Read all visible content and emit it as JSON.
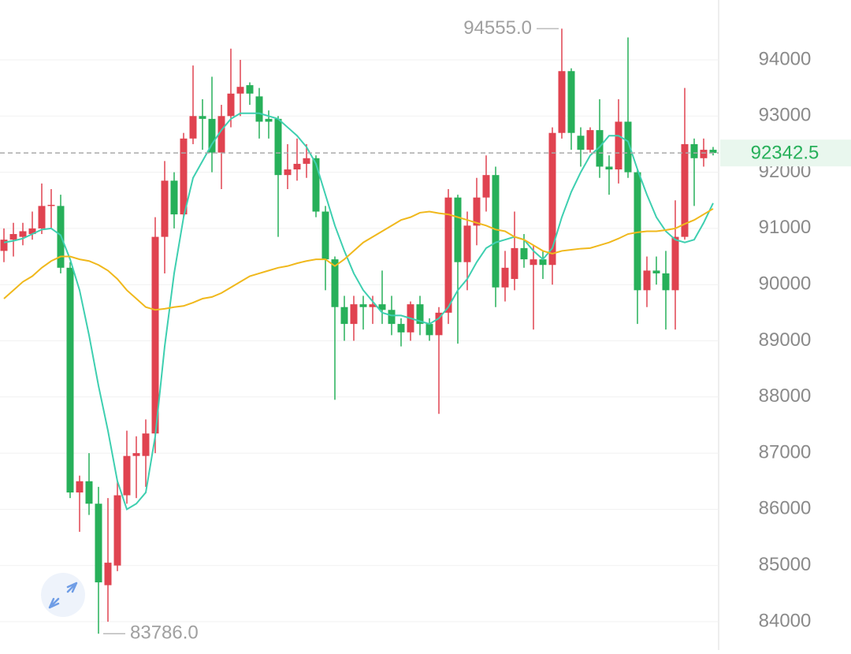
{
  "chart_data": {
    "type": "candlestick",
    "up_color": "#e04350",
    "down_color": "#27b05a",
    "ylim": [
      83495,
      95066
    ],
    "yticks": [
      84000,
      85000,
      86000,
      87000,
      88000,
      89000,
      90000,
      91000,
      92000,
      93000,
      94000
    ],
    "grid": true,
    "open": [
      90600,
      90800,
      90850,
      90900,
      91000,
      91400,
      91400,
      90300,
      86300,
      86500,
      86100,
      84650,
      85000,
      86250,
      86950,
      86950,
      87350,
      90850,
      91850,
      91250,
      92600,
      93000,
      92950,
      92350,
      93000,
      93400,
      93550,
      93350,
      92950,
      92950,
      91950,
      92050,
      92150,
      92250,
      91300,
      90450,
      89600,
      89300,
      89650,
      89600,
      89650,
      89550,
      89300,
      89150,
      89650,
      89300,
      89100,
      89500,
      91550,
      90400,
      91050,
      91550,
      91950,
      89950,
      90100,
      90650,
      90350,
      90450,
      90350,
      92700,
      93800,
      92650,
      92400,
      92750,
      92100,
      92050,
      92900,
      92000,
      89900,
      90250,
      90200,
      89900,
      90850,
      92500,
      92250,
      92400
    ],
    "high": [
      91000,
      91100,
      91100,
      91300,
      91800,
      91700,
      91600,
      90400,
      86600,
      87000,
      86400,
      86200,
      86500,
      87400,
      87300,
      87600,
      91200,
      92200,
      92000,
      92700,
      93900,
      93300,
      93700,
      93200,
      94200,
      94000,
      93600,
      93500,
      93100,
      93000,
      92500,
      92600,
      92500,
      92300,
      91400,
      90500,
      89800,
      89800,
      89800,
      89800,
      90250,
      89800,
      89400,
      89700,
      89800,
      89400,
      89600,
      91700,
      91600,
      91300,
      91900,
      92300,
      92100,
      90600,
      91300,
      90900,
      90700,
      90600,
      92800,
      94555,
      93850,
      92800,
      92800,
      93300,
      92300,
      93300,
      94400,
      92050,
      90500,
      90500,
      90600,
      91500,
      93500,
      92600,
      92600,
      92450
    ],
    "low": [
      90400,
      90500,
      90700,
      90800,
      90900,
      91000,
      90200,
      86200,
      85600,
      85900,
      83786,
      84000,
      84900,
      86100,
      86200,
      86400,
      87000,
      90200,
      91000,
      91200,
      92500,
      92400,
      92000,
      91700,
      92800,
      93000,
      93200,
      92600,
      92600,
      90850,
      91700,
      91850,
      91900,
      91200,
      89900,
      87950,
      89000,
      89000,
      89200,
      89300,
      89300,
      89100,
      88900,
      89000,
      89100,
      89000,
      87700,
      89300,
      88950,
      89900,
      90700,
      91300,
      89600,
      89700,
      89900,
      90300,
      89200,
      90100,
      90000,
      92600,
      92400,
      92100,
      92350,
      91900,
      91600,
      91800,
      91900,
      89300,
      89600,
      90000,
      89200,
      89200,
      90800,
      91400,
      92100,
      92300
    ],
    "close": [
      90800,
      90900,
      90950,
      91000,
      91400,
      91420,
      90300,
      86300,
      86500,
      86100,
      84700,
      85050,
      86250,
      86950,
      87000,
      87350,
      90850,
      91850,
      91250,
      92600,
      93000,
      92950,
      92350,
      93000,
      93400,
      93520,
      93400,
      92900,
      92900,
      91950,
      92050,
      92150,
      92250,
      91300,
      90450,
      89600,
      89300,
      89650,
      89600,
      89650,
      89550,
      89300,
      89150,
      89650,
      89300,
      89100,
      89500,
      91550,
      90400,
      91050,
      91550,
      91950,
      89950,
      90300,
      90650,
      90450,
      90450,
      90350,
      92700,
      93800,
      92700,
      92400,
      92750,
      92100,
      92050,
      92900,
      92000,
      89900,
      90250,
      90200,
      89900,
      90850,
      92500,
      92250,
      92400,
      92342.5
    ],
    "series": [
      {
        "color": "#3ecfb0",
        "values": [
          90750,
          90780,
          90820,
          90900,
          90980,
          91000,
          90880,
          90450,
          89900,
          89100,
          88200,
          87400,
          86500,
          86000,
          86100,
          86300,
          87300,
          88900,
          90200,
          91200,
          91900,
          92200,
          92500,
          92750,
          92950,
          93050,
          93050,
          93050,
          93000,
          92950,
          92800,
          92650,
          92450,
          92150,
          91600,
          91050,
          90600,
          90200,
          89900,
          89700,
          89500,
          89450,
          89450,
          89400,
          89350,
          89300,
          89400,
          89600,
          89900,
          90100,
          90400,
          90650,
          90750,
          90800,
          90850,
          90800,
          90600,
          90450,
          90650,
          91200,
          91650,
          92000,
          92300,
          92450,
          92650,
          92650,
          92550,
          92050,
          91600,
          91200,
          90950,
          90800,
          90750,
          90800,
          91100,
          91450
        ]
      },
      {
        "color": "#f0b81c",
        "values": [
          89750,
          89900,
          90050,
          90150,
          90300,
          90420,
          90500,
          90500,
          90450,
          90420,
          90350,
          90250,
          90100,
          89900,
          89750,
          89600,
          89550,
          89570,
          89600,
          89620,
          89680,
          89750,
          89780,
          89850,
          89950,
          90050,
          90150,
          90200,
          90250,
          90300,
          90330,
          90380,
          90420,
          90450,
          90450,
          90330,
          90450,
          90600,
          90750,
          90850,
          90950,
          91050,
          91150,
          91200,
          91280,
          91300,
          91270,
          91250,
          91200,
          91150,
          91100,
          91050,
          90980,
          90950,
          90850,
          90800,
          90700,
          90600,
          90550,
          90600,
          90620,
          90640,
          90650,
          90700,
          90750,
          90820,
          90900,
          90930,
          90950,
          90950,
          90970,
          91000,
          91080,
          91150,
          91250,
          91350
        ]
      }
    ],
    "annotations": [
      {
        "value": 94555,
        "label": "94555.0"
      },
      {
        "value": 83786,
        "label": "83786.0"
      }
    ],
    "last_price": 92342.5
  }
}
